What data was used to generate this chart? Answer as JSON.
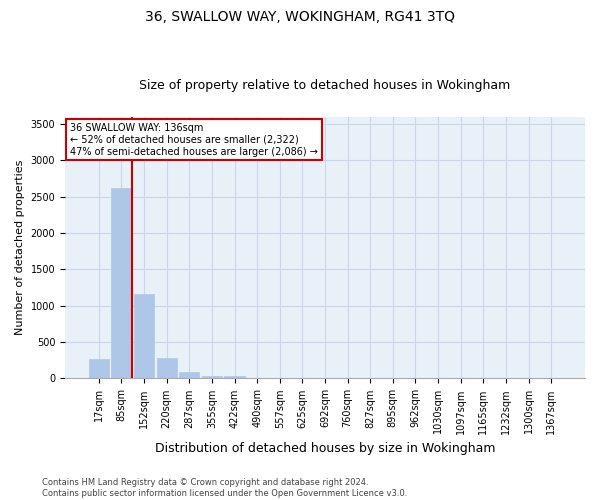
{
  "title": "36, SWALLOW WAY, WOKINGHAM, RG41 3TQ",
  "subtitle": "Size of property relative to detached houses in Wokingham",
  "xlabel": "Distribution of detached houses by size in Wokingham",
  "ylabel": "Number of detached properties",
  "bins": [
    "17sqm",
    "85sqm",
    "152sqm",
    "220sqm",
    "287sqm",
    "355sqm",
    "422sqm",
    "490sqm",
    "557sqm",
    "625sqm",
    "692sqm",
    "760sqm",
    "827sqm",
    "895sqm",
    "962sqm",
    "1030sqm",
    "1097sqm",
    "1165sqm",
    "1232sqm",
    "1300sqm",
    "1367sqm"
  ],
  "bar_heights": [
    270,
    2620,
    1160,
    280,
    90,
    40,
    28,
    0,
    0,
    0,
    0,
    0,
    0,
    0,
    0,
    0,
    0,
    0,
    0,
    0,
    0
  ],
  "bar_color": "#aec6e8",
  "bar_edge_color": "#aec6e8",
  "vline_x_index": 1.45,
  "vline_color": "#cc0000",
  "annotation_text": "36 SWALLOW WAY: 136sqm\n← 52% of detached houses are smaller (2,322)\n47% of semi-detached houses are larger (2,086) →",
  "annotation_box_color": "white",
  "annotation_box_edge": "#cc0000",
  "ylim": [
    0,
    3600
  ],
  "yticks": [
    0,
    500,
    1000,
    1500,
    2000,
    2500,
    3000,
    3500
  ],
  "grid_color": "#c8d8e8",
  "background_color": "#e8f0f8",
  "footnote": "Contains HM Land Registry data © Crown copyright and database right 2024.\nContains public sector information licensed under the Open Government Licence v3.0.",
  "title_fontsize": 10,
  "subtitle_fontsize": 9,
  "annotation_fontsize": 7,
  "ylabel_fontsize": 8,
  "xlabel_fontsize": 9,
  "tick_fontsize": 7,
  "footnote_fontsize": 6
}
